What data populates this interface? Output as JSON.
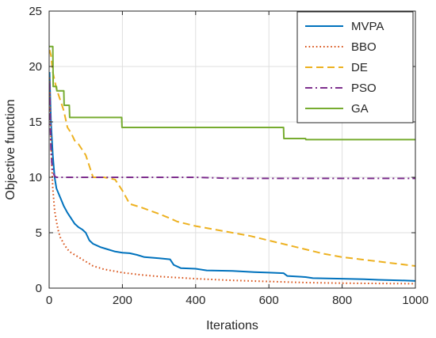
{
  "chart_data": {
    "type": "line",
    "title": "",
    "xlabel": "Iterations",
    "ylabel": "Objective function",
    "xlim": [
      0,
      1000
    ],
    "ylim": [
      0,
      25
    ],
    "xticks": [
      "0",
      "200",
      "400",
      "600",
      "800",
      "1000"
    ],
    "yticks": [
      "0",
      "5",
      "10",
      "15",
      "20",
      "25"
    ],
    "grid": true,
    "legend_position": "top-right",
    "series": [
      {
        "name": "MVPA",
        "color": "#0072BD",
        "style": "solid",
        "x": [
          1,
          5,
          10,
          15,
          20,
          30,
          40,
          50,
          60,
          70,
          80,
          90,
          100,
          110,
          120,
          140,
          160,
          180,
          200,
          220,
          240,
          260,
          300,
          330,
          340,
          360,
          400,
          430,
          500,
          560,
          600,
          640,
          650,
          700,
          720,
          800,
          860,
          900,
          960,
          1000
        ],
        "values": [
          19.5,
          15.0,
          12.0,
          10.0,
          9.0,
          8.2,
          7.4,
          6.8,
          6.3,
          5.8,
          5.5,
          5.3,
          5.0,
          4.3,
          4.0,
          3.7,
          3.5,
          3.3,
          3.2,
          3.15,
          3.0,
          2.8,
          2.7,
          2.6,
          2.1,
          1.8,
          1.75,
          1.6,
          1.55,
          1.45,
          1.4,
          1.35,
          1.1,
          1.0,
          0.9,
          0.85,
          0.8,
          0.75,
          0.7,
          0.65
        ]
      },
      {
        "name": "BBO",
        "color": "#D95319",
        "style": "dotted",
        "x": [
          1,
          3,
          6,
          10,
          15,
          20,
          25,
          30,
          40,
          50,
          60,
          80,
          100,
          120,
          150,
          200,
          250,
          300,
          350,
          400,
          500,
          600,
          700,
          800,
          900,
          1000
        ],
        "values": [
          19.0,
          16.0,
          12.0,
          9.0,
          7.0,
          6.0,
          5.2,
          4.6,
          4.0,
          3.5,
          3.2,
          2.8,
          2.4,
          2.0,
          1.7,
          1.4,
          1.2,
          1.05,
          0.95,
          0.85,
          0.7,
          0.6,
          0.5,
          0.45,
          0.42,
          0.4
        ]
      },
      {
        "name": "DE",
        "color": "#EDB120",
        "style": "dashed",
        "x": [
          1,
          5,
          10,
          20,
          30,
          40,
          50,
          60,
          70,
          80,
          90,
          100,
          110,
          120,
          130,
          150,
          180,
          200,
          220,
          250,
          300,
          330,
          350,
          400,
          450,
          500,
          550,
          600,
          650,
          700,
          750,
          800,
          850,
          900,
          950,
          1000
        ],
        "values": [
          21.5,
          21.0,
          19.5,
          18.0,
          17.0,
          16.0,
          14.5,
          14.0,
          13.3,
          13.0,
          12.5,
          12.0,
          11.0,
          10.0,
          10.0,
          10.0,
          9.8,
          8.8,
          7.6,
          7.3,
          6.7,
          6.3,
          6.0,
          5.6,
          5.3,
          5.0,
          4.7,
          4.3,
          3.9,
          3.5,
          3.1,
          2.8,
          2.6,
          2.4,
          2.2,
          2.0
        ]
      },
      {
        "name": "PSO",
        "color": "#7E2F8E",
        "style": "dash-dot",
        "x": [
          1,
          3,
          5,
          8,
          10,
          15,
          20,
          50,
          100,
          200,
          300,
          400,
          500,
          600,
          700,
          800,
          900,
          1000
        ],
        "values": [
          18.5,
          15.0,
          12.5,
          11.0,
          10.5,
          10.1,
          10.0,
          10.0,
          10.0,
          10.0,
          10.0,
          10.0,
          9.9,
          9.9,
          9.9,
          9.9,
          9.9,
          9.9
        ]
      },
      {
        "name": "GA",
        "color": "#77AC30",
        "style": "solid",
        "x": [
          1,
          10,
          11,
          20,
          21,
          40,
          41,
          55,
          56,
          198,
          199,
          640,
          641,
          700,
          701,
          1000
        ],
        "values": [
          21.8,
          21.8,
          18.2,
          18.2,
          17.8,
          17.8,
          16.5,
          16.5,
          15.4,
          15.4,
          14.5,
          14.5,
          13.5,
          13.5,
          13.4,
          13.4
        ]
      }
    ]
  }
}
